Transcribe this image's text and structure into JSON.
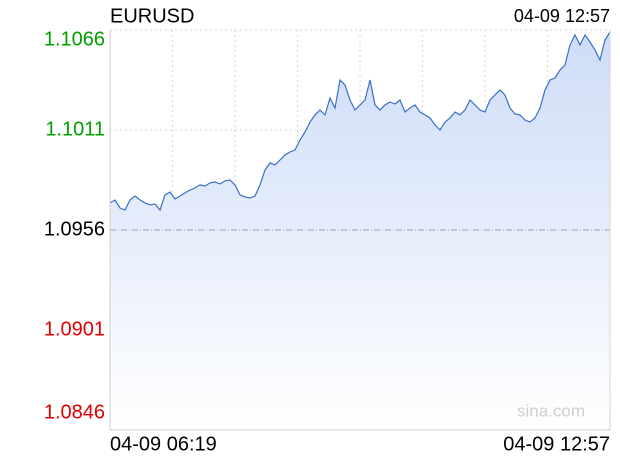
{
  "chart_data": {
    "type": "area",
    "title": "EURUSD",
    "latest_time": "04-09 12:57",
    "watermark": "sina.com",
    "categories": [
      "04-09 06:19",
      null,
      null,
      null,
      null,
      null,
      null,
      null,
      null,
      null,
      null,
      null,
      null,
      null,
      null,
      null,
      null,
      null,
      null,
      null,
      null,
      null,
      null,
      null,
      null,
      null,
      null,
      null,
      null,
      null,
      null,
      null,
      null,
      null,
      null,
      null,
      null,
      null,
      null,
      null,
      null,
      null,
      null,
      null,
      null,
      null,
      null,
      null,
      null,
      null,
      null,
      null,
      null,
      null,
      null,
      null,
      null,
      null,
      null,
      null,
      null,
      null,
      null,
      null,
      null,
      null,
      null,
      null,
      null,
      null,
      null,
      null,
      null,
      null,
      null,
      null,
      null,
      null,
      null,
      null,
      null,
      null,
      null,
      null,
      null,
      null,
      null,
      null,
      null,
      null,
      null,
      null,
      null,
      null,
      null,
      null,
      null,
      null,
      null,
      null,
      "04-09 12:57"
    ],
    "values": [
      1.09709,
      1.09725,
      1.09681,
      1.0967,
      1.09725,
      1.09747,
      1.09725,
      1.09709,
      1.09698,
      1.09703,
      1.0967,
      1.09753,
      1.09769,
      1.09731,
      1.09747,
      1.09764,
      1.0978,
      1.09791,
      1.09808,
      1.09802,
      1.09819,
      1.09824,
      1.09813,
      1.0983,
      1.09835,
      1.09808,
      1.09753,
      1.09742,
      1.09736,
      1.09747,
      1.09808,
      1.0989,
      1.09929,
      1.09918,
      1.09945,
      1.09973,
      1.09989,
      1.1,
      1.10055,
      1.10099,
      1.10154,
      1.10193,
      1.1022,
      1.10193,
      1.10286,
      1.10231,
      1.10385,
      1.10358,
      1.10275,
      1.1022,
      1.10248,
      1.10275,
      1.10385,
      1.10248,
      1.1022,
      1.10248,
      1.10264,
      1.10253,
      1.10275,
      1.10209,
      1.10231,
      1.10248,
      1.10209,
      1.10193,
      1.10176,
      1.10138,
      1.1011,
      1.10154,
      1.10176,
      1.10209,
      1.10193,
      1.1022,
      1.10275,
      1.10248,
      1.1022,
      1.10209,
      1.10275,
      1.10303,
      1.1033,
      1.10303,
      1.10231,
      1.10198,
      1.10193,
      1.10165,
      1.10154,
      1.10176,
      1.10231,
      1.1033,
      1.10385,
      1.10396,
      1.1044,
      1.10468,
      1.10578,
      1.10633,
      1.10578,
      1.10633,
      1.10594,
      1.1055,
      1.10495,
      1.10605,
      1.10649
    ],
    "color": "#3a6fc4",
    "fill_color": "#cddcf7",
    "ylim": [
      1.0846,
      1.1066
    ],
    "yticks": [
      1.1066,
      1.1011,
      1.0956,
      1.0901,
      1.0846
    ],
    "baseline": 1.0956,
    "up_color": "#00a000",
    "down_color": "#e00000",
    "flat_color": "#000000",
    "grid": true
  }
}
